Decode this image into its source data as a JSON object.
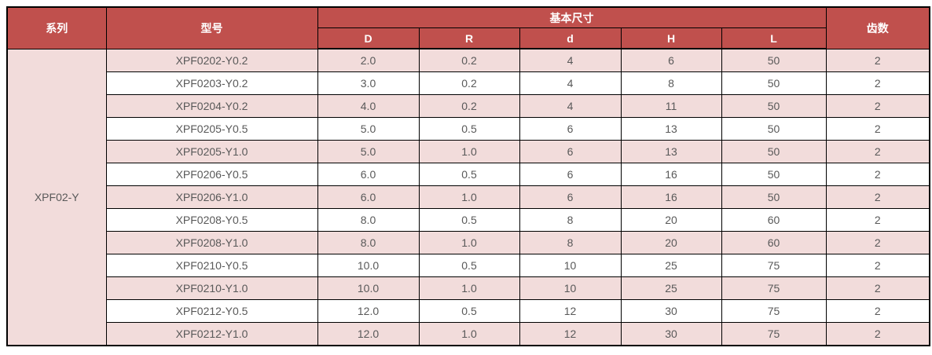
{
  "colors": {
    "header_bg": "#c0504d",
    "header_text": "#ffffff",
    "row_alt_bg": "#f2dcdb",
    "row_bg": "#ffffff",
    "border": "#000000",
    "data_text": "#595959"
  },
  "table": {
    "headers": {
      "series": "系列",
      "model": "型号",
      "dimensions": "基本尺寸",
      "teeth": "齿数",
      "dim_columns": [
        "D",
        "R",
        "d",
        "H",
        "L"
      ]
    },
    "series_value": "XPF02-Y",
    "rows": [
      {
        "model": "XPF0202-Y0.2",
        "D": "2.0",
        "R": "0.2",
        "d": "4",
        "H": "6",
        "L": "50",
        "teeth": "2"
      },
      {
        "model": "XPF0203-Y0.2",
        "D": "3.0",
        "R": "0.2",
        "d": "4",
        "H": "8",
        "L": "50",
        "teeth": "2"
      },
      {
        "model": "XPF0204-Y0.2",
        "D": "4.0",
        "R": "0.2",
        "d": "4",
        "H": "11",
        "L": "50",
        "teeth": "2"
      },
      {
        "model": "XPF0205-Y0.5",
        "D": "5.0",
        "R": "0.5",
        "d": "6",
        "H": "13",
        "L": "50",
        "teeth": "2"
      },
      {
        "model": "XPF0205-Y1.0",
        "D": "5.0",
        "R": "1.0",
        "d": "6",
        "H": "13",
        "L": "50",
        "teeth": "2"
      },
      {
        "model": "XPF0206-Y0.5",
        "D": "6.0",
        "R": "0.5",
        "d": "6",
        "H": "16",
        "L": "50",
        "teeth": "2"
      },
      {
        "model": "XPF0206-Y1.0",
        "D": "6.0",
        "R": "1.0",
        "d": "6",
        "H": "16",
        "L": "50",
        "teeth": "2"
      },
      {
        "model": "XPF0208-Y0.5",
        "D": "8.0",
        "R": "0.5",
        "d": "8",
        "H": "20",
        "L": "60",
        "teeth": "2"
      },
      {
        "model": "XPF0208-Y1.0",
        "D": "8.0",
        "R": "1.0",
        "d": "8",
        "H": "20",
        "L": "60",
        "teeth": "2"
      },
      {
        "model": "XPF0210-Y0.5",
        "D": "10.0",
        "R": "0.5",
        "d": "10",
        "H": "25",
        "L": "75",
        "teeth": "2"
      },
      {
        "model": "XPF0210-Y1.0",
        "D": "10.0",
        "R": "1.0",
        "d": "10",
        "H": "25",
        "L": "75",
        "teeth": "2"
      },
      {
        "model": "XPF0212-Y0.5",
        "D": "12.0",
        "R": "0.5",
        "d": "12",
        "H": "30",
        "L": "75",
        "teeth": "2"
      },
      {
        "model": "XPF0212-Y1.0",
        "D": "12.0",
        "R": "1.0",
        "d": "12",
        "H": "30",
        "L": "75",
        "teeth": "2"
      }
    ]
  }
}
